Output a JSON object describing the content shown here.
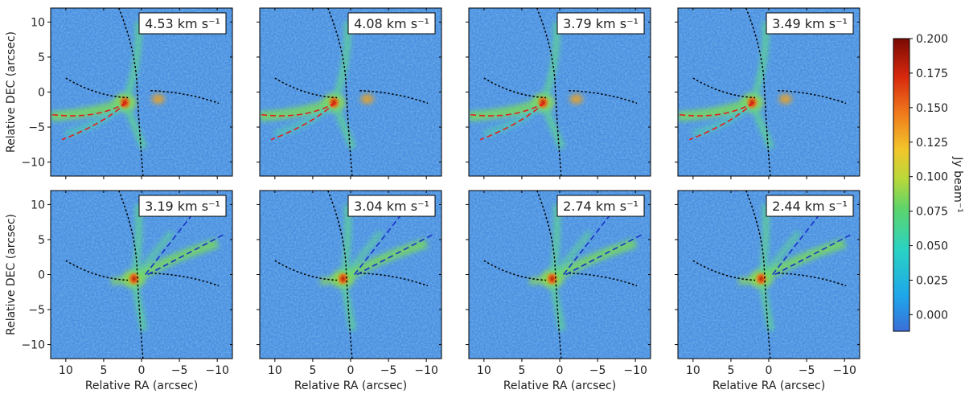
{
  "chart_data": {
    "type": "heatmap",
    "layout": "2x4 grid of channel maps",
    "panels": [
      {
        "velocity": "4.53 km s⁻¹",
        "outflow": "red"
      },
      {
        "velocity": "4.08 km s⁻¹",
        "outflow": "red"
      },
      {
        "velocity": "3.79 km s⁻¹",
        "outflow": "red"
      },
      {
        "velocity": "3.49 km s⁻¹",
        "outflow": "red"
      },
      {
        "velocity": "3.19 km s⁻¹",
        "outflow": "blue"
      },
      {
        "velocity": "3.04 km s⁻¹",
        "outflow": "blue"
      },
      {
        "velocity": "2.74 km s⁻¹",
        "outflow": "blue"
      },
      {
        "velocity": "2.44 km s⁻¹",
        "outflow": "blue"
      }
    ],
    "xlabel": "Relative RA (arcsec)",
    "ylabel": "Relative DEC (arcsec)",
    "xlim": [
      12,
      -12
    ],
    "ylim": [
      -12,
      12
    ],
    "xticks": [
      10,
      5,
      0,
      -5,
      -10
    ],
    "yticks": [
      10,
      5,
      0,
      -5,
      -10
    ],
    "colorbar": {
      "label": "Jy beam⁻¹",
      "range": [
        -0.012,
        0.2
      ],
      "ticks": [
        0.0,
        0.025,
        0.05,
        0.075,
        0.1,
        0.125,
        0.15,
        0.175,
        0.2
      ],
      "tick_labels": [
        "0.000",
        "0.025",
        "0.050",
        "0.075",
        "0.100",
        "0.125",
        "0.150",
        "0.175",
        "0.200"
      ]
    }
  }
}
